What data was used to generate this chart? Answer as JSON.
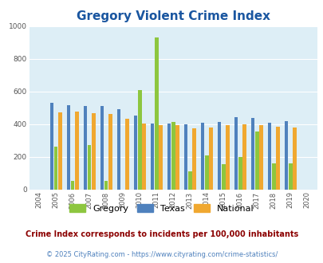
{
  "title": "Gregory Violent Crime Index",
  "years": [
    2004,
    2005,
    2006,
    2007,
    2008,
    2009,
    2010,
    2011,
    2012,
    2013,
    2014,
    2015,
    2016,
    2017,
    2018,
    2019,
    2020
  ],
  "gregory": [
    null,
    260,
    50,
    270,
    50,
    null,
    610,
    930,
    415,
    110,
    210,
    155,
    200,
    355,
    160,
    160,
    null
  ],
  "texas": [
    null,
    530,
    515,
    510,
    510,
    490,
    455,
    405,
    405,
    400,
    410,
    415,
    445,
    440,
    410,
    420,
    null
  ],
  "national": [
    null,
    470,
    475,
    465,
    460,
    435,
    405,
    395,
    395,
    375,
    380,
    395,
    400,
    395,
    385,
    380,
    null
  ],
  "bar_colors": {
    "gregory": "#8dc63f",
    "texas": "#4f81bd",
    "national": "#f0a830"
  },
  "ylim": [
    0,
    1000
  ],
  "yticks": [
    0,
    200,
    400,
    600,
    800,
    1000
  ],
  "background_color": "#ddeef6",
  "title_color": "#1a56a0",
  "title_fontsize": 11,
  "legend_labels": [
    "Gregory",
    "Texas",
    "National"
  ],
  "footnote1": "Crime Index corresponds to incidents per 100,000 inhabitants",
  "footnote2": "© 2025 CityRating.com - https://www.cityrating.com/crime-statistics/",
  "footnote1_color": "#8b0000",
  "footnote2_color": "#4f81bd",
  "bar_order": [
    "texas",
    "gregory",
    "national"
  ]
}
